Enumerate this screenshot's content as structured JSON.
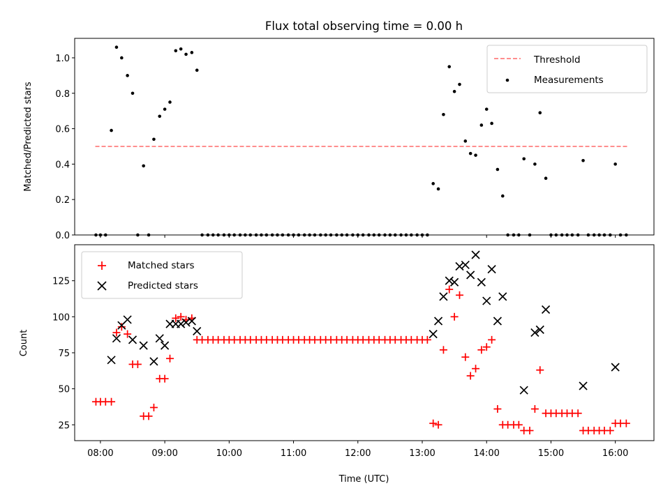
{
  "chart_data": [
    {
      "type": "scatter",
      "title": "Flux total observing time = 0.00 h",
      "xlabel": "",
      "ylabel": "Matched/Predicted stars",
      "xlim": [
        7.6,
        16.6
      ],
      "ylim": [
        0,
        1.11
      ],
      "xticks": [
        8,
        9,
        10,
        11,
        12,
        13,
        14,
        15,
        16
      ],
      "yticks": [
        0.0,
        0.2,
        0.4,
        0.6,
        0.8,
        1.0
      ],
      "ytick_labels": [
        "0.0",
        "0.2",
        "0.4",
        "0.6",
        "0.8",
        "1.0"
      ],
      "legend_position": "upper right",
      "legend": [
        {
          "label": "Threshold",
          "style": "dashed-line",
          "color": "#ff7f7f"
        },
        {
          "label": "Measurements",
          "style": "dot",
          "color": "#000000"
        }
      ],
      "series": [
        {
          "name": "Threshold",
          "kind": "line",
          "color": "#ff7f7f",
          "x": [
            7.92,
            16.2
          ],
          "y": [
            0.5,
            0.5
          ]
        },
        {
          "name": "Measurements",
          "kind": "scatter",
          "color": "#000000",
          "x": [
            7.93,
            8.0,
            8.08,
            8.17,
            8.25,
            8.33,
            8.42,
            8.5,
            8.58,
            8.67,
            8.75,
            8.83,
            8.92,
            9.0,
            9.08,
            9.17,
            9.25,
            9.33,
            9.42,
            9.5,
            9.58,
            9.67,
            9.75,
            9.83,
            9.92,
            10.0,
            10.08,
            10.17,
            10.25,
            10.33,
            10.42,
            10.5,
            10.58,
            10.67,
            10.75,
            10.83,
            10.92,
            11.0,
            11.08,
            11.17,
            11.25,
            11.33,
            11.42,
            11.5,
            11.58,
            11.67,
            11.75,
            11.83,
            11.92,
            12.0,
            12.08,
            12.17,
            12.25,
            12.33,
            12.42,
            12.5,
            12.58,
            12.67,
            12.75,
            12.83,
            12.92,
            13.0,
            13.08,
            13.17,
            13.25,
            13.33,
            13.42,
            13.5,
            13.58,
            13.67,
            13.75,
            13.83,
            13.92,
            14.0,
            14.08,
            14.17,
            14.25,
            14.33,
            14.42,
            14.5,
            14.58,
            14.67,
            14.75,
            14.83,
            14.92,
            15.0,
            15.08,
            15.17,
            15.25,
            15.33,
            15.42,
            15.5,
            15.58,
            15.67,
            15.75,
            15.83,
            15.92,
            16.0,
            16.08,
            16.17
          ],
          "y": [
            0.0,
            0.0,
            0.0,
            0.59,
            1.06,
            1.0,
            0.9,
            0.8,
            0.0,
            0.39,
            0.0,
            0.54,
            0.67,
            0.71,
            0.75,
            1.04,
            1.05,
            1.02,
            1.03,
            0.93,
            0.0,
            0.0,
            0.0,
            0.0,
            0.0,
            0.0,
            0.0,
            0.0,
            0.0,
            0.0,
            0.0,
            0.0,
            0.0,
            0.0,
            0.0,
            0.0,
            0.0,
            0.0,
            0.0,
            0.0,
            0.0,
            0.0,
            0.0,
            0.0,
            0.0,
            0.0,
            0.0,
            0.0,
            0.0,
            0.0,
            0.0,
            0.0,
            0.0,
            0.0,
            0.0,
            0.0,
            0.0,
            0.0,
            0.0,
            0.0,
            0.0,
            0.0,
            0.0,
            0.29,
            0.26,
            0.68,
            0.95,
            0.81,
            0.85,
            0.53,
            0.46,
            0.45,
            0.62,
            0.71,
            0.63,
            0.37,
            0.22,
            0.0,
            0.0,
            0.0,
            0.43,
            0.0,
            0.4,
            0.69,
            0.32,
            0.0,
            0.0,
            0.0,
            0.0,
            0.0,
            0.0,
            0.42,
            0.0,
            0.0,
            0.0,
            0.0,
            0.0,
            0.4,
            0.0,
            0.0
          ]
        }
      ]
    },
    {
      "type": "scatter",
      "title": "",
      "xlabel": "Time (UTC)",
      "ylabel": "Count",
      "xlim": [
        7.6,
        16.6
      ],
      "ylim": [
        14,
        150
      ],
      "xticks": [
        8,
        9,
        10,
        11,
        12,
        13,
        14,
        15,
        16
      ],
      "xtick_labels": [
        "08:00",
        "09:00",
        "10:00",
        "11:00",
        "12:00",
        "13:00",
        "14:00",
        "15:00",
        "16:00"
      ],
      "yticks": [
        25,
        50,
        75,
        100,
        125
      ],
      "ytick_labels": [
        "25",
        "50",
        "75",
        "100",
        "125"
      ],
      "legend_position": "upper left",
      "legend": [
        {
          "label": "Matched stars",
          "style": "plus",
          "color": "#ff0000"
        },
        {
          "label": "Predicted stars",
          "style": "x",
          "color": "#000000"
        }
      ],
      "series": [
        {
          "name": "Matched stars",
          "kind": "scatter",
          "marker": "plus",
          "color": "#ff0000",
          "x": [
            7.93,
            8.0,
            8.08,
            8.17,
            8.25,
            8.33,
            8.42,
            8.5,
            8.58,
            8.67,
            8.75,
            8.83,
            8.92,
            9.0,
            9.08,
            9.17,
            9.25,
            9.33,
            9.42,
            9.5,
            9.58,
            9.67,
            9.75,
            9.83,
            9.92,
            10.0,
            10.08,
            10.17,
            10.25,
            10.33,
            10.42,
            10.5,
            10.58,
            10.67,
            10.75,
            10.83,
            10.92,
            11.0,
            11.08,
            11.17,
            11.25,
            11.33,
            11.42,
            11.5,
            11.58,
            11.67,
            11.75,
            11.83,
            11.92,
            12.0,
            12.08,
            12.17,
            12.25,
            12.33,
            12.42,
            12.5,
            12.58,
            12.67,
            12.75,
            12.83,
            12.92,
            13.0,
            13.08,
            13.17,
            13.25,
            13.33,
            13.42,
            13.5,
            13.58,
            13.67,
            13.75,
            13.83,
            13.92,
            14.0,
            14.08,
            14.17,
            14.25,
            14.33,
            14.42,
            14.5,
            14.58,
            14.67,
            14.75,
            14.83,
            14.92,
            15.0,
            15.08,
            15.17,
            15.25,
            15.33,
            15.42,
            15.5,
            15.58,
            15.67,
            15.75,
            15.83,
            15.92,
            16.0,
            16.08,
            16.17
          ],
          "y": [
            41,
            41,
            41,
            41,
            89,
            93,
            88,
            67,
            67,
            31,
            31,
            37,
            57,
            57,
            71,
            99,
            100,
            98,
            99,
            84,
            84,
            84,
            84,
            84,
            84,
            84,
            84,
            84,
            84,
            84,
            84,
            84,
            84,
            84,
            84,
            84,
            84,
            84,
            84,
            84,
            84,
            84,
            84,
            84,
            84,
            84,
            84,
            84,
            84,
            84,
            84,
            84,
            84,
            84,
            84,
            84,
            84,
            84,
            84,
            84,
            84,
            84,
            84,
            26,
            25,
            77,
            119,
            100,
            115,
            72,
            59,
            64,
            77,
            79,
            84,
            36,
            25,
            25,
            25,
            25,
            21,
            21,
            36,
            63,
            33,
            33,
            33,
            33,
            33,
            33,
            33,
            21,
            21,
            21,
            21,
            21,
            21,
            26,
            26,
            26
          ]
        },
        {
          "name": "Predicted stars",
          "kind": "scatter",
          "marker": "x",
          "color": "#000000",
          "x": [
            8.17,
            8.25,
            8.33,
            8.42,
            8.5,
            8.67,
            8.83,
            8.92,
            9.0,
            9.08,
            9.17,
            9.25,
            9.33,
            9.42,
            9.5,
            13.17,
            13.25,
            13.33,
            13.42,
            13.5,
            13.58,
            13.67,
            13.75,
            13.83,
            13.92,
            14.0,
            14.08,
            14.17,
            14.25,
            14.58,
            14.75,
            14.83,
            14.92,
            15.5,
            16.0
          ],
          "y": [
            70,
            85,
            94,
            98,
            84,
            80,
            69,
            85,
            80,
            95,
            95,
            95,
            96,
            97,
            90,
            88,
            97,
            114,
            125,
            124,
            135,
            136,
            129,
            143,
            124,
            111,
            133,
            97,
            114,
            49,
            89,
            91,
            105,
            52,
            65
          ]
        }
      ]
    }
  ]
}
